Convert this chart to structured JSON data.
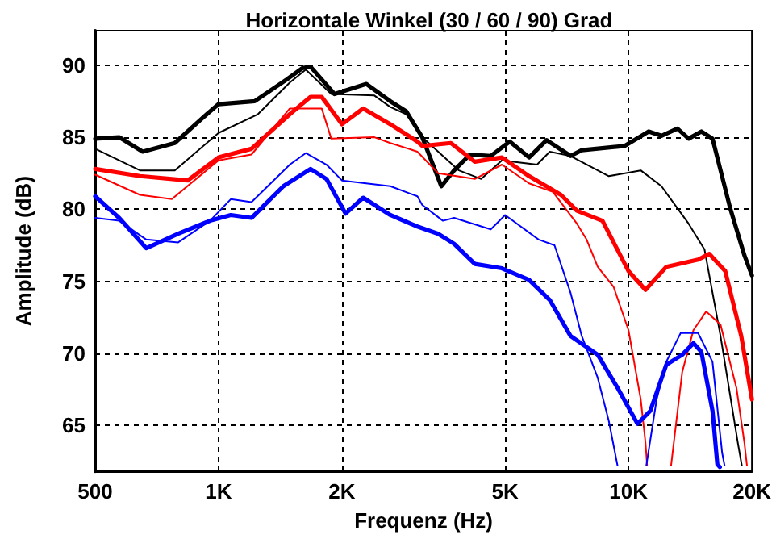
{
  "chart_data": {
    "type": "line",
    "title": "Horizontale Winkel (30 / 60 / 90) Grad",
    "xlabel": "Frequenz (Hz)",
    "ylabel": "Amplitude (dB)",
    "log": "x",
    "xlim": [
      500,
      20000
    ],
    "xticks": [
      500,
      {
        "value": 1000,
        "label": "1K"
      },
      {
        "value": 2000,
        "label": "2K"
      },
      {
        "value": 5000,
        "label": "5K"
      },
      {
        "value": 10000,
        "label": "10K"
      },
      {
        "value": 20000,
        "label": "20K"
      }
    ],
    "ylim": [
      61.8,
      92.4
    ],
    "yticks": [
      65,
      70,
      75,
      80,
      85,
      90
    ],
    "grid": true,
    "marker": "none",
    "line_style": "solid",
    "series": [
      {
        "color": "#000000",
        "x": [
          500,
          572,
          653,
          782,
          936,
          1000,
          1225,
          1465,
          1602,
          1676,
          1917,
          2294,
          2624,
          2869,
          3139,
          3494,
          3754,
          4106,
          4613,
          5135,
          5720,
          6313,
          7220,
          7690,
          9790,
          11200,
          12030,
          13160,
          14013,
          15054,
          16028,
          17690,
          19170,
          20000
        ],
        "values": [
          84.9,
          85.0,
          84.0,
          84.6,
          86.6,
          87.3,
          87.5,
          89.0,
          89.8,
          89.9,
          88.0,
          88.7,
          87.5,
          86.8,
          85.0,
          81.6,
          82.7,
          83.8,
          83.7,
          84.7,
          83.6,
          84.8,
          83.7,
          84.1,
          84.4,
          85.4,
          85.1,
          85.6,
          84.9,
          85.4,
          84.9,
          80.1,
          76.8,
          75.4
        ]
      },
      {
        "color": "#000000",
        "x": [
          500,
          643,
          782,
          1000,
          1247,
          1492,
          1632,
          1883,
          2399,
          2624,
          2869,
          3139,
          3856,
          4371,
          4911,
          5982,
          6426,
          7220,
          8952,
          10710,
          12030,
          14013,
          15327,
          16765,
          18500,
          18900
        ],
        "values": [
          84.2,
          82.7,
          82.7,
          85.3,
          86.6,
          88.8,
          89.7,
          88.0,
          87.9,
          87.1,
          86.6,
          85.0,
          82.7,
          82.1,
          83.4,
          83.1,
          84.0,
          83.7,
          82.3,
          82.7,
          81.6,
          79.0,
          77.2,
          71.2,
          63.7,
          62.2
        ]
      },
      {
        "color": "#ff0000",
        "x": [
          500,
          643,
          841,
          1000,
          1203,
          1492,
          1676,
          1785,
          2000,
          2253,
          2624,
          3055,
          3139,
          3687,
          4217,
          4911,
          5720,
          6842,
          7484,
          8640,
          10000,
          11000,
          12360,
          14786,
          15743,
          17219,
          18834,
          20000
        ],
        "values": [
          82.8,
          82.3,
          82.0,
          83.6,
          84.2,
          86.6,
          87.8,
          87.8,
          85.9,
          87.0,
          85.9,
          84.7,
          84.4,
          84.6,
          83.3,
          83.6,
          82.3,
          81.0,
          79.9,
          79.2,
          75.7,
          74.4,
          76.0,
          76.5,
          76.9,
          75.7,
          71.2,
          66.8
        ]
      },
      {
        "color": "#ff0000",
        "x": [
          500,
          643,
          769,
          1000,
          1203,
          1492,
          1785,
          1883,
          2399,
          2624,
          3055,
          3433,
          4217,
          4911,
          5720,
          6541,
          7484,
          7901,
          8411,
          9197,
          10000,
          10710,
          11000,
          11100,
          12000,
          12700,
          13521,
          14396,
          15465,
          16765,
          18333,
          19170,
          19450
        ],
        "values": [
          82.4,
          81.0,
          80.7,
          83.4,
          83.8,
          87.0,
          87.0,
          84.9,
          85.0,
          84.6,
          84.0,
          82.5,
          82.1,
          83.1,
          81.8,
          81.2,
          79.0,
          77.9,
          76.0,
          74.6,
          71.6,
          66.8,
          63.8,
          62.2,
          null,
          62.2,
          68.7,
          71.6,
          72.9,
          72.0,
          67.6,
          63.8,
          62.2
        ]
      },
      {
        "color": "#0000ff",
        "x": [
          500,
          572,
          666,
          797,
          953,
          1071,
          1203,
          1439,
          1676,
          1833,
          2041,
          2253,
          2624,
          3055,
          3433,
          3754,
          4217,
          4911,
          5720,
          6426,
          7220,
          8411,
          9447,
          10517,
          11300,
          12360,
          13521,
          14396,
          15054,
          16028,
          16467,
          16700
        ],
        "values": [
          80.9,
          79.4,
          77.3,
          78.3,
          79.2,
          79.6,
          79.4,
          81.6,
          82.8,
          82.1,
          79.7,
          80.8,
          79.6,
          78.8,
          78.3,
          77.6,
          76.2,
          75.9,
          75.1,
          73.7,
          71.2,
          69.9,
          67.5,
          65.1,
          66.0,
          69.2,
          69.9,
          70.7,
          70.1,
          66.0,
          62.3,
          62.1
        ]
      },
      {
        "color": "#0000ff",
        "x": [
          500,
          572,
          666,
          797,
          953,
          1071,
          1203,
          1492,
          1632,
          1833,
          2000,
          2624,
          3055,
          3139,
          3526,
          3754,
          4613,
          5000,
          6035,
          6599,
          7220,
          7690,
          8411,
          8952,
          9400,
          10200,
          11050,
          11712,
          12360,
          13397,
          14786,
          16028,
          16916,
          17150
        ],
        "values": [
          79.4,
          79.2,
          77.9,
          77.7,
          79.2,
          80.7,
          80.5,
          83.1,
          83.9,
          83.1,
          82.0,
          81.6,
          80.9,
          80.3,
          79.2,
          79.4,
          78.6,
          79.6,
          77.9,
          77.5,
          74.2,
          71.2,
          68.3,
          65.3,
          62.2,
          null,
          62.2,
          66.8,
          69.4,
          71.4,
          71.4,
          69.4,
          63.1,
          62.2
        ]
      }
    ]
  }
}
